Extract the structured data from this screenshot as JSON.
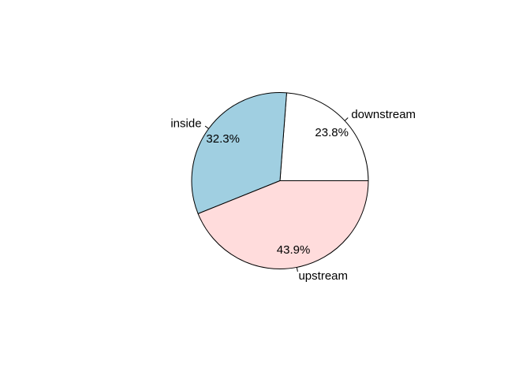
{
  "chart_data": {
    "type": "pie",
    "title": "",
    "start_angle_deg": 0,
    "direction": "counterclockwise",
    "slices": [
      {
        "label": "downstream",
        "value": 23.8,
        "percent_label": "23.8%",
        "color": "#ffffff"
      },
      {
        "label": "inside",
        "value": 32.3,
        "percent_label": "32.3%",
        "color": "#a0cfe1"
      },
      {
        "label": "upstream",
        "value": 43.9,
        "percent_label": "43.9%",
        "color": "#ffdcdc"
      }
    ]
  }
}
